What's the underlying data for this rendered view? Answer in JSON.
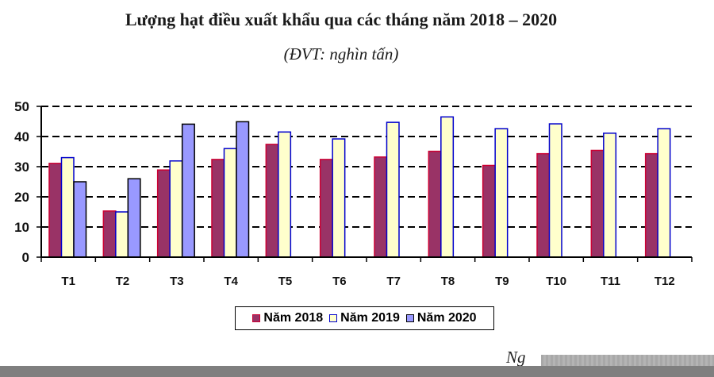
{
  "chart_data": {
    "type": "bar",
    "title": "Lượng hạt điều xuất khẩu qua các tháng năm 2018 – 2020",
    "subtitle": "(ĐVT: nghìn tấn)",
    "xlabel": "",
    "ylabel": "",
    "ylim": [
      0,
      50
    ],
    "yticks": [
      0,
      10,
      20,
      30,
      40,
      50
    ],
    "grid": "dashed horizontal",
    "legend_position": "bottom",
    "categories": [
      "T1",
      "T2",
      "T3",
      "T4",
      "T5",
      "T6",
      "T7",
      "T8",
      "T9",
      "T10",
      "T11",
      "T12"
    ],
    "series": [
      {
        "name": "Năm 2018",
        "fill": "#993366",
        "stroke": "#cc0033",
        "values": [
          31.1,
          15.3,
          28.9,
          32.4,
          37.4,
          32.4,
          33.2,
          35.1,
          30.4,
          34.3,
          35.4,
          34.3
        ]
      },
      {
        "name": "Năm 2019",
        "fill": "#ffffcc",
        "stroke": "#0000cc",
        "values": [
          33.0,
          15.0,
          31.9,
          36.0,
          41.5,
          39.2,
          44.7,
          46.5,
          42.6,
          44.2,
          41.1,
          42.6
        ]
      },
      {
        "name": "Năm 2020",
        "fill": "#9999ff",
        "stroke": "#000000",
        "values": [
          25.0,
          26.0,
          44.1,
          44.9,
          null,
          null,
          null,
          null,
          null,
          null,
          null,
          null
        ]
      }
    ]
  },
  "source": {
    "visible_text": "Ng"
  }
}
